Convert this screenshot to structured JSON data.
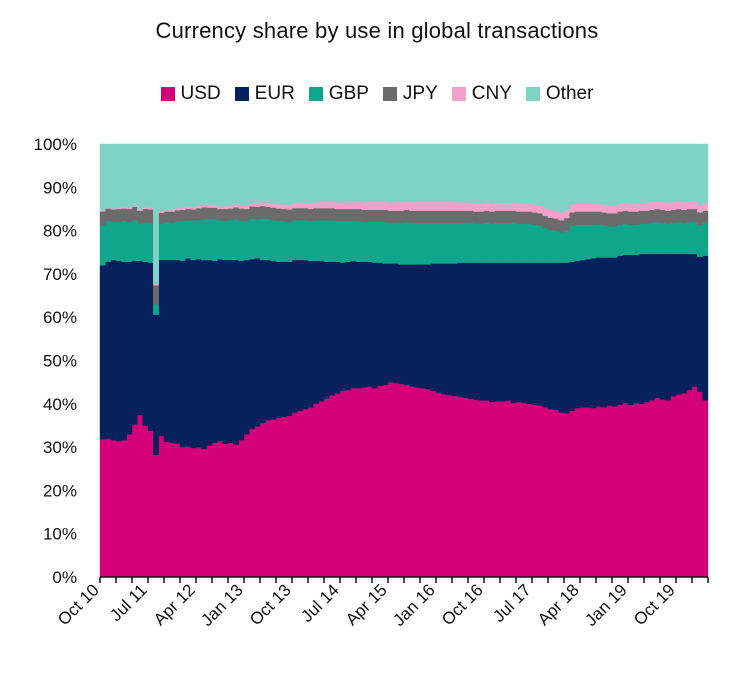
{
  "chart_data": {
    "type": "area",
    "stacked": true,
    "normalized": true,
    "title": "Currency share by use in global transactions",
    "xlabel": "",
    "ylabel": "",
    "ylim": [
      0,
      100
    ],
    "y_ticks": [
      "0%",
      "10%",
      "20%",
      "30%",
      "40%",
      "50%",
      "60%",
      "70%",
      "80%",
      "90%",
      "100%"
    ],
    "x_tick_labels": [
      "Oct 10",
      "Jul 11",
      "Apr 12",
      "Jan 13",
      "Oct 13",
      "Jul 14",
      "Apr 15",
      "Jan 16",
      "Oct 16",
      "Jul 17",
      "Apr 18",
      "Jan 19",
      "Oct 19"
    ],
    "legend_position": "top",
    "grid": false,
    "x": [
      "Oct 10",
      "Nov 10",
      "Dec 10",
      "Jan 11",
      "Feb 11",
      "Mar 11",
      "Apr 11",
      "May 11",
      "Jun 11",
      "Jul 11",
      "Aug 11",
      "Sep 11",
      "Oct 11",
      "Nov 11",
      "Dec 11",
      "Jan 12",
      "Feb 12",
      "Mar 12",
      "Apr 12",
      "May 12",
      "Jun 12",
      "Jul 12",
      "Aug 12",
      "Sep 12",
      "Oct 12",
      "Nov 12",
      "Dec 12",
      "Jan 13",
      "Feb 13",
      "Mar 13",
      "Apr 13",
      "May 13",
      "Jun 13",
      "Jul 13",
      "Aug 13",
      "Sep 13",
      "Oct 13",
      "Nov 13",
      "Dec 13",
      "Jan 14",
      "Feb 14",
      "Mar 14",
      "Apr 14",
      "May 14",
      "Jun 14",
      "Jul 14",
      "Aug 14",
      "Sep 14",
      "Oct 14",
      "Nov 14",
      "Dec 14",
      "Jan 15",
      "Feb 15",
      "Mar 15",
      "Apr 15",
      "May 15",
      "Jun 15",
      "Jul 15",
      "Aug 15",
      "Sep 15",
      "Oct 15",
      "Nov 15",
      "Dec 15",
      "Jan 16",
      "Feb 16",
      "Mar 16",
      "Apr 16",
      "May 16",
      "Jun 16",
      "Jul 16",
      "Aug 16",
      "Sep 16",
      "Oct 16",
      "Nov 16",
      "Dec 16",
      "Jan 17",
      "Feb 17",
      "Mar 17",
      "Apr 17",
      "May 17",
      "Jun 17",
      "Jul 17",
      "Aug 17",
      "Sep 17",
      "Oct 17",
      "Nov 17",
      "Dec 17",
      "Jan 18",
      "Feb 18",
      "Mar 18",
      "Apr 18",
      "May 18",
      "Jun 18",
      "Jul 18",
      "Aug 18",
      "Sep 18",
      "Oct 18",
      "Nov 18",
      "Dec 18",
      "Jan 19",
      "Feb 19",
      "Mar 19",
      "Apr 19",
      "May 19",
      "Jun 19",
      "Jul 19",
      "Aug 19",
      "Sep 19",
      "Oct 19",
      "Nov 19",
      "Dec 19",
      "Jan 20",
      "Feb 20",
      "Mar 20"
    ],
    "series": [
      {
        "name": "USD",
        "color": "#D4007A",
        "values": [
          31.8,
          32,
          31.6,
          31.4,
          31.6,
          33,
          35.2,
          37.4,
          35,
          33.8,
          28.2,
          32.6,
          31.2,
          31,
          30.8,
          30,
          30.2,
          29.8,
          30,
          29.6,
          30.4,
          31,
          31.4,
          30.8,
          31,
          30.6,
          31.6,
          33,
          34.2,
          34.8,
          35.6,
          36.2,
          36.4,
          36.8,
          37,
          37.2,
          38,
          38.4,
          38.8,
          39.2,
          40,
          40.6,
          41.2,
          42,
          42.4,
          43,
          43.2,
          43.6,
          43.6,
          43.8,
          44,
          43.6,
          44.2,
          44.4,
          45,
          44.8,
          44.6,
          44.4,
          44,
          43.8,
          43.6,
          43.4,
          43,
          42.6,
          42.2,
          42,
          41.8,
          41.6,
          41.4,
          41.2,
          41,
          40.8,
          40.8,
          40.4,
          40.6,
          40.6,
          40.8,
          40.2,
          40.4,
          40.2,
          40,
          39.8,
          39.6,
          39.2,
          38.8,
          38.6,
          38,
          37.8,
          38.4,
          39,
          39.2,
          39.2,
          39,
          39.4,
          39.2,
          39.6,
          39.4,
          39.8,
          40.2,
          39.8,
          40.2,
          40,
          40.4,
          40.8,
          41.4,
          41,
          40.8,
          41.8,
          42.2,
          42.4,
          43.2,
          44,
          42.8,
          40.8
        ]
      },
      {
        "name": "EUR",
        "color": "#06215B",
        "values": [
          40.2,
          40.8,
          41.6,
          41.6,
          41.2,
          39.8,
          37.8,
          35.6,
          37.8,
          38.8,
          32.4,
          40.6,
          42,
          42.2,
          42.4,
          43,
          43.4,
          43.4,
          43.4,
          43.6,
          42.8,
          42,
          42,
          42.4,
          42.2,
          42.6,
          41.4,
          40.2,
          39.2,
          38.8,
          37.6,
          37,
          36.6,
          36,
          35.8,
          35.6,
          35.2,
          34.8,
          34.4,
          33.8,
          33,
          32.4,
          31.6,
          30.8,
          30.4,
          29.6,
          29.6,
          29.4,
          29.2,
          29,
          28.8,
          29,
          28.4,
          28,
          27.4,
          27.6,
          27.6,
          27.8,
          28.2,
          28.4,
          28.6,
          28.8,
          29.4,
          29.8,
          30.2,
          30.4,
          30.6,
          31,
          31.2,
          31.4,
          31.6,
          31.8,
          31.8,
          32.2,
          32,
          32,
          31.8,
          32.4,
          32.2,
          32.4,
          32.6,
          32.8,
          33,
          33.4,
          33.8,
          34,
          34.6,
          34.8,
          34.4,
          34,
          34,
          34.2,
          34.6,
          34.4,
          34.6,
          34.2,
          34.4,
          34.4,
          34.2,
          34.6,
          34.2,
          34.6,
          34.2,
          33.8,
          33.2,
          33.6,
          33.8,
          32.8,
          32.4,
          32.2,
          31.4,
          30.6,
          31.2,
          33.4
        ]
      },
      {
        "name": "GBP",
        "color": "#0FA68C",
        "values": [
          9.2,
          9.4,
          8.8,
          9,
          9.4,
          9.2,
          9.4,
          8.6,
          9,
          9.2,
          2.4,
          8.4,
          8.8,
          8.6,
          9,
          9.2,
          8.8,
          9.2,
          9,
          9.4,
          9.4,
          9.6,
          9,
          9,
          9.2,
          9.4,
          9.2,
          9,
          9.4,
          9,
          9.6,
          9.6,
          9.4,
          9.4,
          9.4,
          9.2,
          9.2,
          9.2,
          9.2,
          9.2,
          9.4,
          9.4,
          9.6,
          9.6,
          9.4,
          9.6,
          9.4,
          9.2,
          9.4,
          9.2,
          9.2,
          9.4,
          9.4,
          9.6,
          9.4,
          9.4,
          9.6,
          9.8,
          9.6,
          9.6,
          9.6,
          9.6,
          9.4,
          9.4,
          9.4,
          9.4,
          9.4,
          9.2,
          9.2,
          9.2,
          9,
          9,
          9.2,
          9,
          9.2,
          9.2,
          9.2,
          9.2,
          9,
          9,
          9,
          8.8,
          8.6,
          8,
          7.6,
          7.4,
          7,
          7.4,
          8.4,
          8.4,
          8.2,
          8,
          7.8,
          7.6,
          7.4,
          7.2,
          7.2,
          7.2,
          7.2,
          7,
          7,
          7,
          7,
          7.2,
          7.4,
          7.2,
          7,
          7.2,
          7.4,
          7.2,
          7.4,
          7.4,
          7.2,
          7.6
        ]
      },
      {
        "name": "JPY",
        "color": "#6B6B6B",
        "values": [
          3.2,
          2.9,
          2.9,
          3,
          2.9,
          3,
          3.1,
          3,
          3.2,
          3.1,
          4.4,
          2.5,
          2.4,
          2.6,
          2.5,
          2.6,
          2.6,
          2.5,
          2.8,
          2.8,
          2.7,
          2.7,
          2.6,
          2.8,
          2.7,
          2.8,
          2.9,
          2.8,
          2.8,
          2.9,
          2.9,
          2.7,
          2.9,
          2.9,
          2.8,
          2.9,
          2.8,
          2.8,
          2.8,
          2.8,
          2.8,
          2.8,
          2.8,
          2.8,
          2.8,
          2.8,
          2.8,
          2.8,
          2.8,
          2.8,
          2.8,
          2.8,
          2.8,
          2.8,
          2.8,
          2.8,
          2.8,
          2.8,
          2.8,
          2.8,
          2.8,
          2.8,
          2.8,
          2.8,
          2.8,
          2.8,
          2.8,
          2.8,
          2.8,
          2.8,
          2.8,
          2.8,
          2.8,
          2.8,
          2.8,
          2.8,
          2.8,
          2.8,
          2.8,
          2.8,
          2.8,
          2.8,
          2.8,
          2.8,
          2.8,
          2.8,
          2.8,
          2.9,
          3,
          3,
          3,
          3,
          3,
          3,
          3,
          3,
          3,
          3,
          3,
          3,
          3,
          3,
          3,
          3,
          3,
          3,
          3,
          3,
          3,
          3,
          3,
          3,
          3,
          2.8
        ]
      },
      {
        "name": "CNY",
        "color": "#F3A1C8",
        "values": [
          0.2,
          0.2,
          0.2,
          0.3,
          0.3,
          0.3,
          0.3,
          0.3,
          0.4,
          0.4,
          0.3,
          0.4,
          0.4,
          0.4,
          0.5,
          0.5,
          0.5,
          0.5,
          0.6,
          0.6,
          0.6,
          0.6,
          0.6,
          0.7,
          0.7,
          0.7,
          0.8,
          0.8,
          0.8,
          0.9,
          0.9,
          0.9,
          1,
          1,
          1,
          1.1,
          1.1,
          1.2,
          1.2,
          1.3,
          1.3,
          1.4,
          1.4,
          1.4,
          1.5,
          1.5,
          1.6,
          1.6,
          1.7,
          1.7,
          1.8,
          1.8,
          1.8,
          1.9,
          1.9,
          2,
          2,
          2,
          2,
          2,
          2,
          2,
          2,
          2,
          2,
          2,
          2,
          1.9,
          1.9,
          1.9,
          1.9,
          1.9,
          1.9,
          1.9,
          1.9,
          1.8,
          1.8,
          1.8,
          1.8,
          1.8,
          1.8,
          1.8,
          1.8,
          1.8,
          1.8,
          1.8,
          1.8,
          1.8,
          1.8,
          1.8,
          1.8,
          1.8,
          1.8,
          1.8,
          1.8,
          1.8,
          1.8,
          1.8,
          1.8,
          1.8,
          1.8,
          1.8,
          1.8,
          1.8,
          1.8,
          1.8,
          1.8,
          1.8,
          1.8,
          1.8,
          1.8,
          1.8,
          1.8,
          1.8
        ]
      },
      {
        "name": "Other",
        "color": "#7ED3C5",
        "values": [
          15.4,
          14.7,
          14.9,
          14.7,
          14.6,
          14.7,
          14.2,
          15.1,
          13.6,
          14.7,
          32.3,
          15.5,
          15.2,
          15.2,
          14.8,
          14.7,
          14.5,
          14.6,
          14.2,
          14,
          14.1,
          14.1,
          14.4,
          14.3,
          14.2,
          13.9,
          14.1,
          14.2,
          13.6,
          13.6,
          13.4,
          13.6,
          13.7,
          13.9,
          14,
          14,
          13.7,
          13.6,
          13.6,
          13.7,
          13.5,
          13.4,
          13.4,
          13.4,
          13.5,
          13.5,
          13.4,
          13.4,
          13.3,
          13.5,
          13.4,
          13.4,
          13.4,
          13.3,
          13.5,
          13.4,
          13.4,
          13.2,
          13.4,
          13.4,
          13.4,
          13.4,
          13.4,
          13.4,
          13.4,
          13.4,
          13.4,
          13.5,
          13.5,
          13.5,
          13.7,
          13.7,
          13.5,
          13.7,
          13.5,
          13.6,
          13.6,
          13.6,
          13.8,
          13.8,
          13.8,
          14,
          14.2,
          15.4,
          16.2,
          16.4,
          16.8,
          15.3,
          14,
          13.8,
          13.8,
          13.8,
          13.8,
          13.8,
          13.8,
          14.2,
          14.2,
          13.8,
          13.6,
          13.8,
          13.8,
          13.6,
          13.8,
          13.4,
          13.2,
          13.4,
          13.6,
          13.3,
          12.8,
          13.2,
          13.2,
          13.2,
          13.8,
          13.4
        ]
      }
    ]
  }
}
